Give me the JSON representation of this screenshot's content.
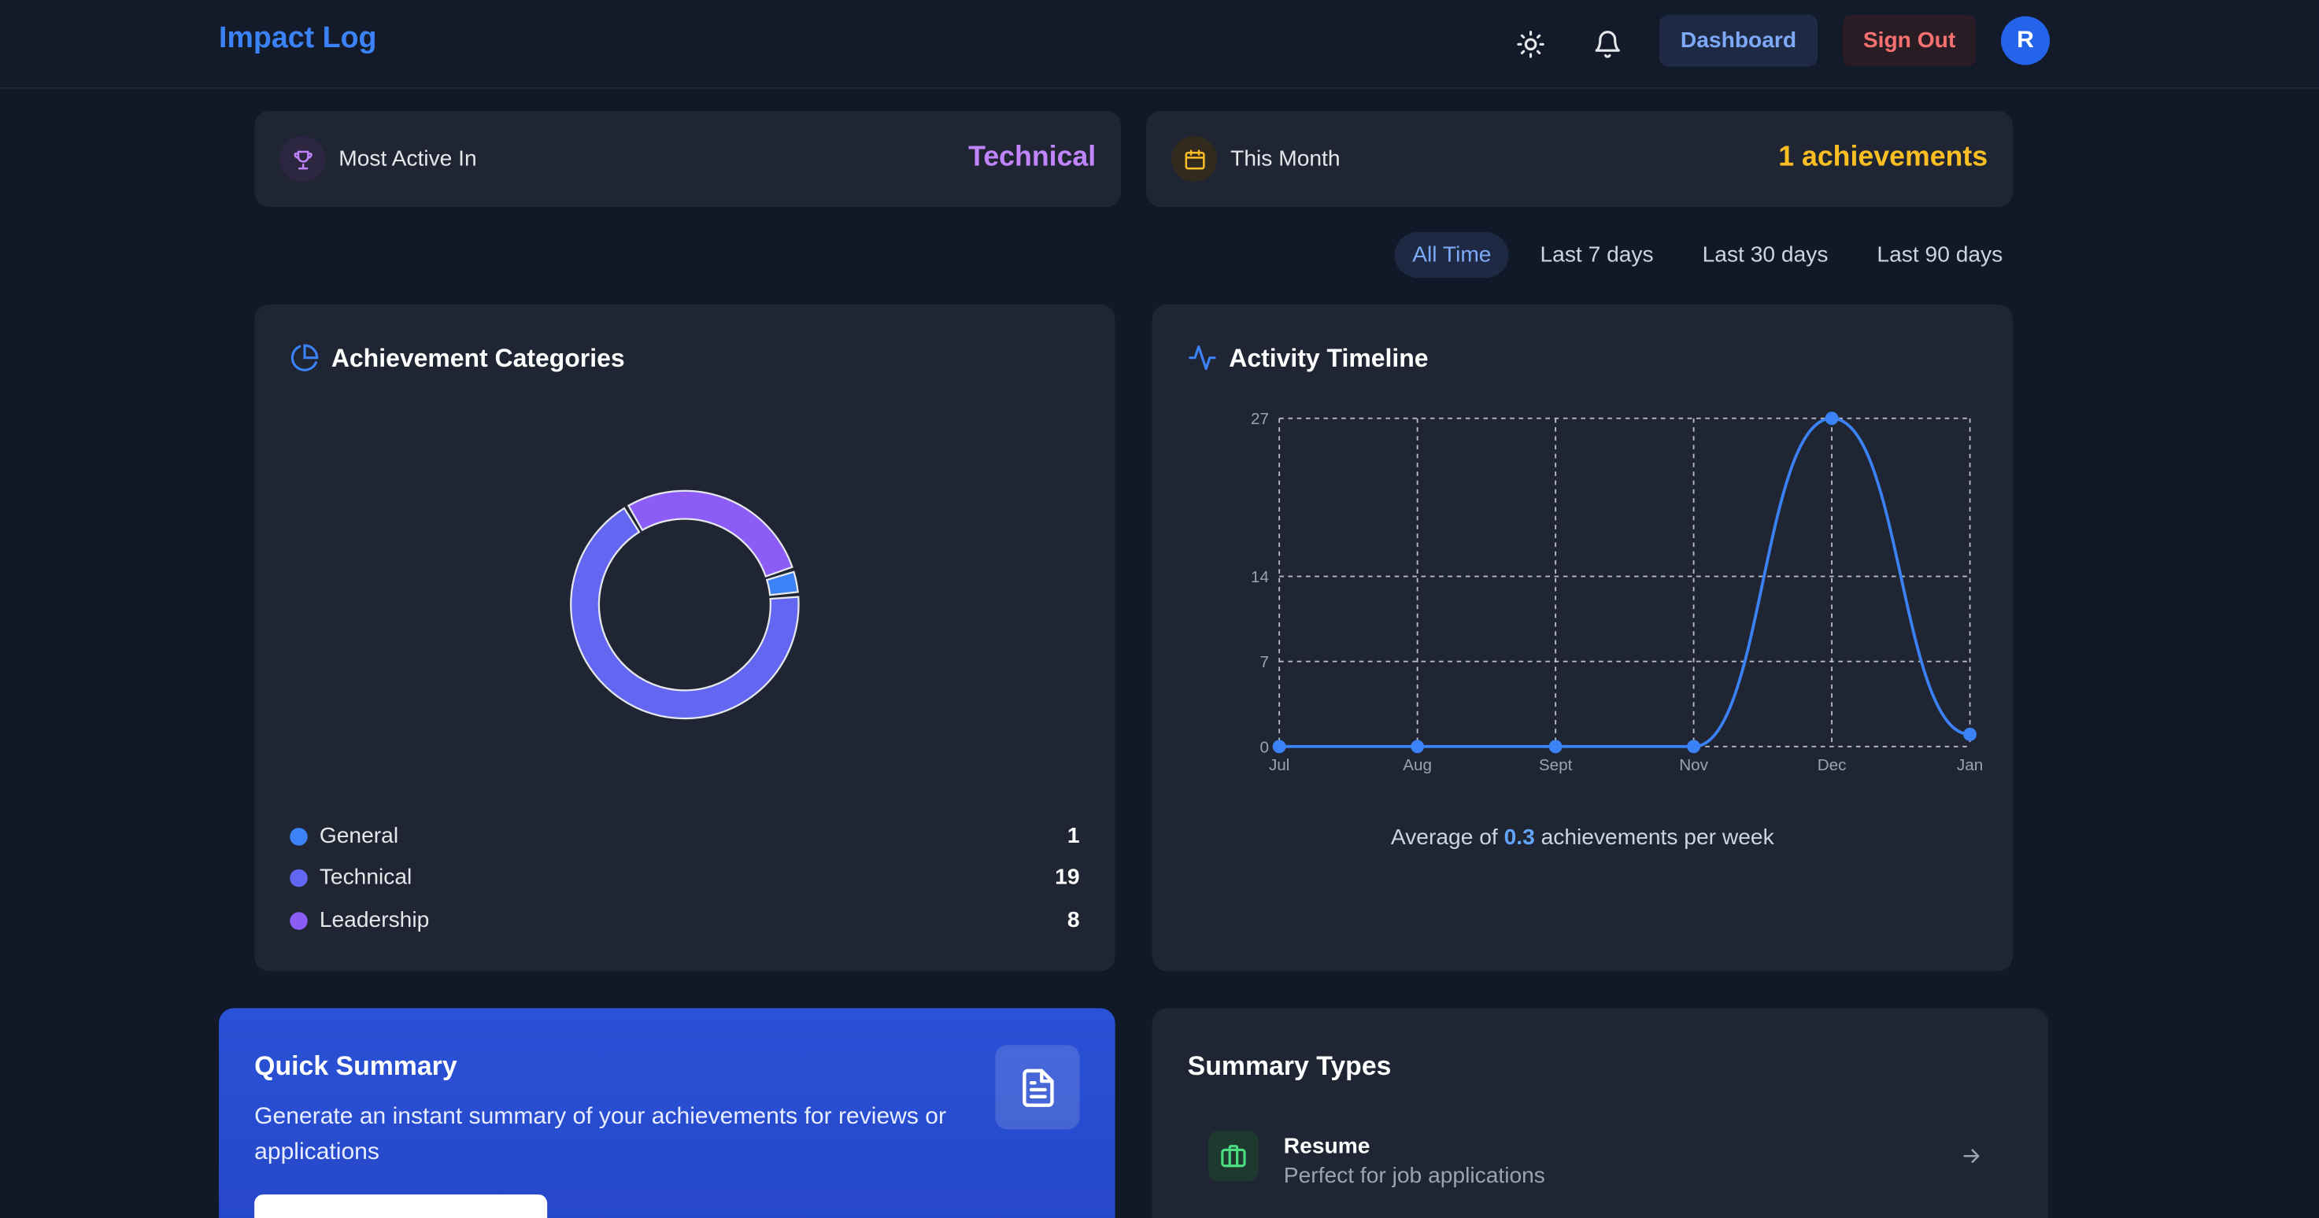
{
  "header": {
    "brand": "Impact Log",
    "dashboard_label": "Dashboard",
    "signout_label": "Sign Out",
    "avatar_initial": "R",
    "icons": [
      "sun-icon",
      "bell-icon"
    ]
  },
  "stats": {
    "most_active": {
      "label": "Most Active In",
      "value": "Technical",
      "color": "#c084fc",
      "icon": "trophy-icon"
    },
    "this_month": {
      "label": "This Month",
      "value": "1 achievements",
      "color": "#fbbf24",
      "icon": "calendar-icon"
    }
  },
  "range_filter": {
    "options": [
      "All Time",
      "Last 7 days",
      "Last 30 days",
      "Last 90 days"
    ],
    "selected": "All Time"
  },
  "categories_panel": {
    "title": "Achievement Categories",
    "icon": "pie-chart-icon",
    "legend": [
      {
        "name": "General",
        "count": "1",
        "color": "#3b82f6"
      },
      {
        "name": "Technical",
        "count": "19",
        "color": "#6366f1"
      },
      {
        "name": "Leadership",
        "count": "8",
        "color": "#8b5cf6"
      }
    ]
  },
  "timeline_panel": {
    "title": "Activity Timeline",
    "icon": "activity-icon",
    "avg_prefix": "Average of",
    "avg_value": "0.3",
    "avg_suffix": "achievements per week"
  },
  "chart_data": [
    {
      "type": "pie",
      "categories": [
        "General",
        "Technical",
        "Leadership"
      ],
      "values": [
        1,
        19,
        8
      ],
      "colors": [
        "#3b82f6",
        "#6366f1",
        "#8b5cf6"
      ],
      "donut": true
    },
    {
      "type": "line",
      "x": [
        "Jul",
        "Aug",
        "Sept",
        "Nov",
        "Dec",
        "Jan"
      ],
      "values": [
        0,
        0,
        0,
        0,
        27,
        1
      ],
      "yticks": [
        0,
        7,
        14,
        27
      ],
      "ylim": [
        0,
        27
      ],
      "grid": true,
      "color": "#3b82f6"
    }
  ],
  "quick_summary": {
    "title": "Quick Summary",
    "description": "Generate an instant summary of your achievements for reviews or applications",
    "icon": "document-icon"
  },
  "summary_types": {
    "title": "Summary Types",
    "items": [
      {
        "name": "Resume",
        "description": "Perfect for job applications",
        "icon": "briefcase-icon"
      }
    ]
  }
}
